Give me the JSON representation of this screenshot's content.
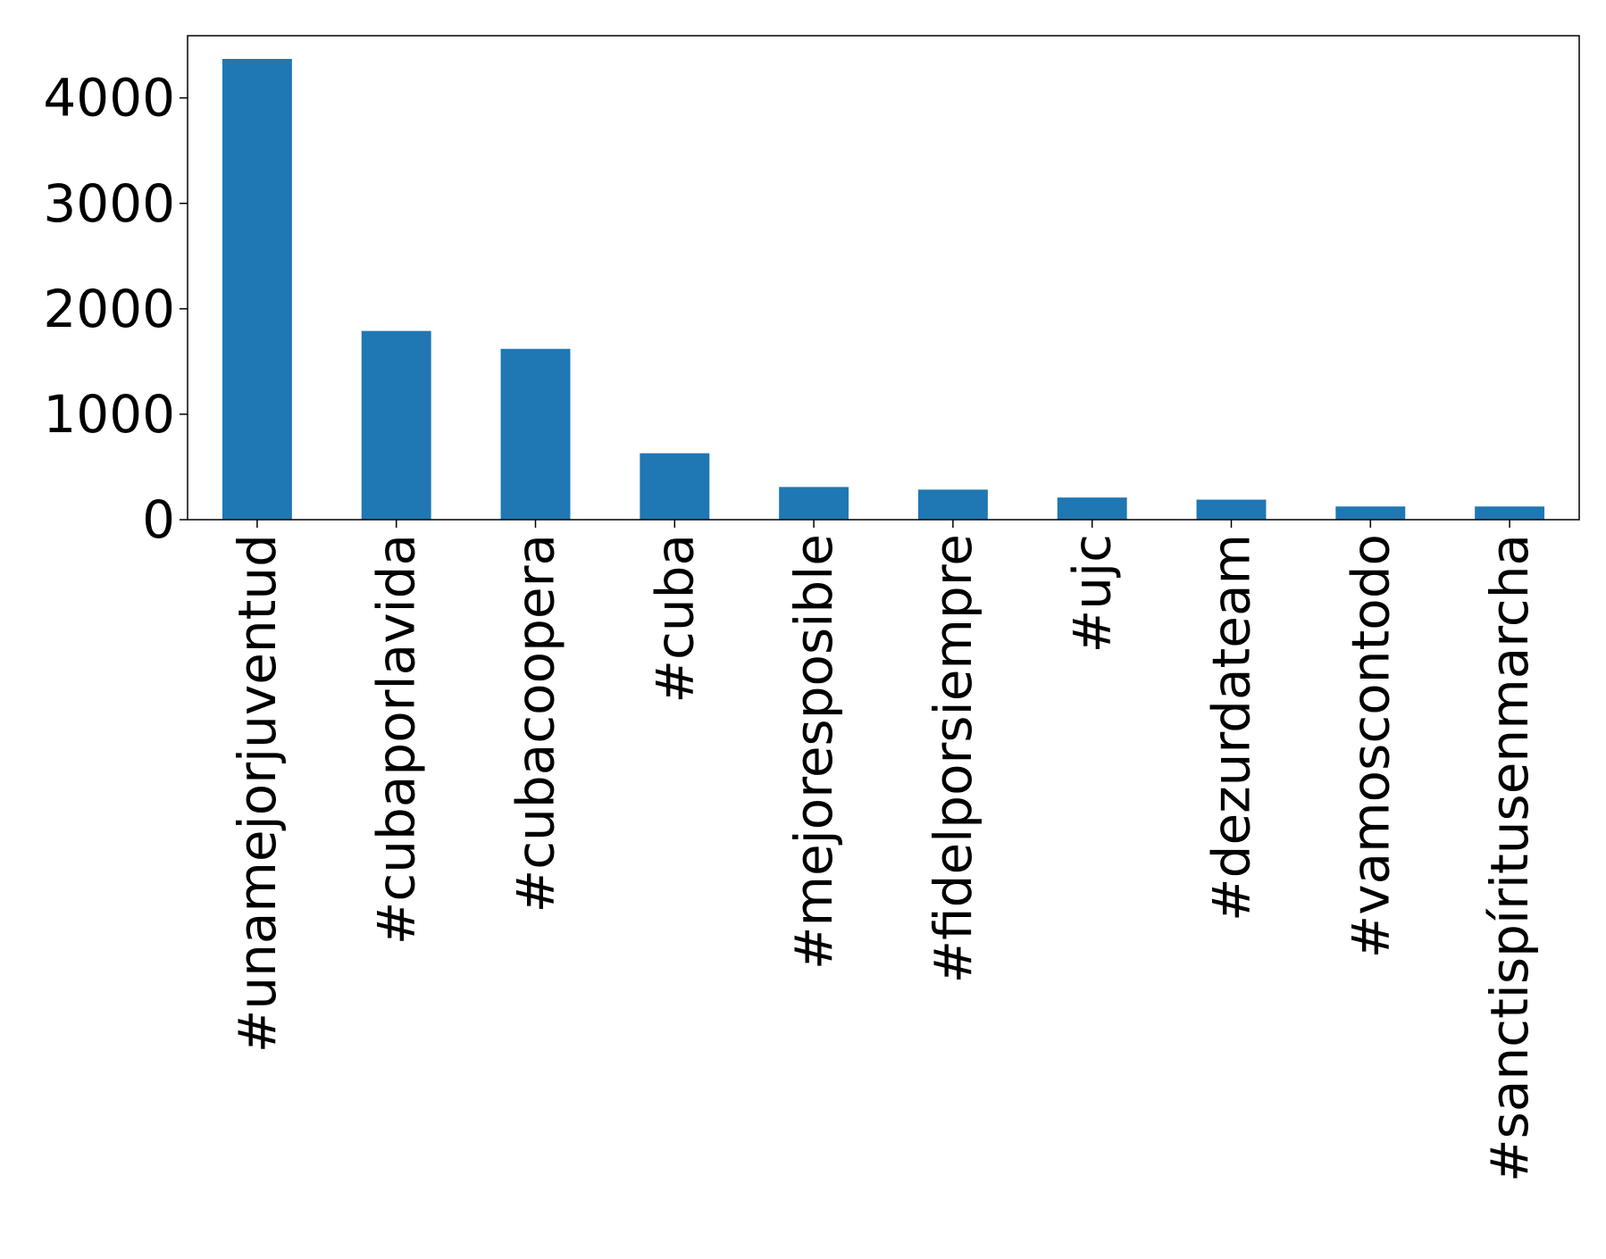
{
  "chart_data": {
    "type": "bar",
    "title": "",
    "xlabel": "",
    "ylabel": "",
    "categories": [
      "#unamejorjuventud",
      "#cubaporlavida",
      "#cubacoopera",
      "#cuba",
      "#mejoresposible",
      "#fidelporsiempre",
      "#ujc",
      "#dezurdateam",
      "#vamoscontodo",
      "#sanctispíritusenmarcha"
    ],
    "values": [
      4370,
      1790,
      1620,
      630,
      310,
      285,
      210,
      190,
      125,
      125
    ],
    "ylim": [
      0,
      4590
    ],
    "yticks": [
      0,
      1000,
      2000,
      3000,
      4000
    ],
    "ytick_labels": [
      "0",
      "1000",
      "2000",
      "3000",
      "4000"
    ],
    "bar_color": "#1f77b4",
    "grid": false,
    "legend": "none"
  }
}
